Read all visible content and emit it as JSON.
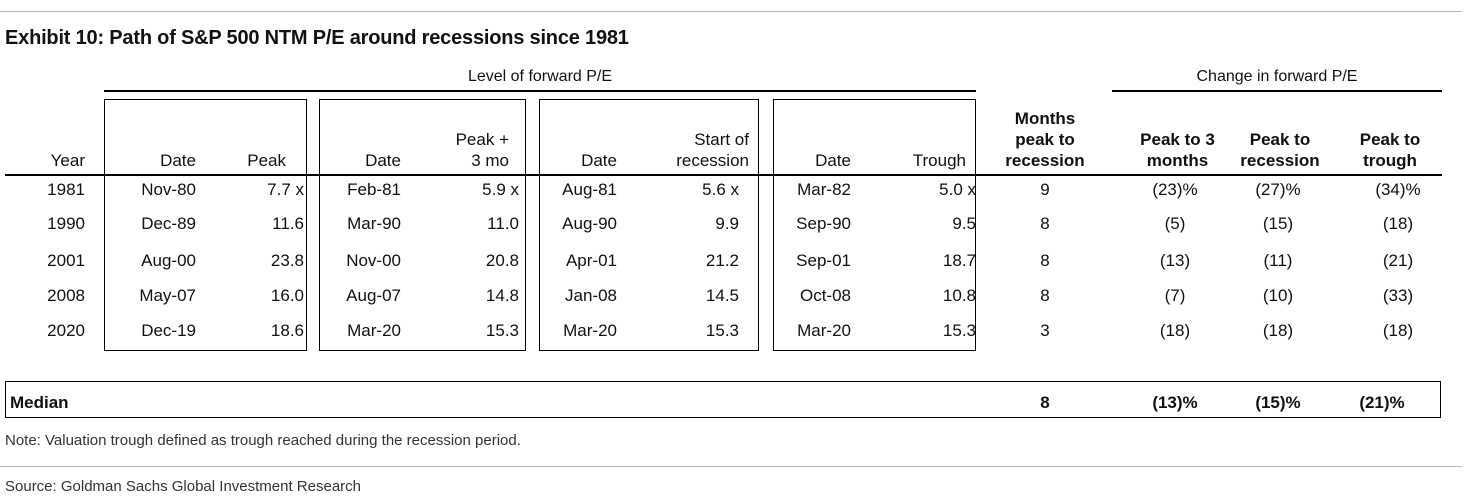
{
  "title": "Exhibit 10: Path of S&P 500 NTM P/E around recessions since 1981",
  "group_level": "Level of forward P/E",
  "group_change": "Change in forward P/E",
  "headers": {
    "year": "Year",
    "date": "Date",
    "peak": "Peak",
    "peak3_l1": "Peak +",
    "peak3_l2": "3 mo",
    "start_l1": "Start of",
    "start_l2": "recession",
    "trough": "Trough",
    "months_l1": "Months",
    "months_l2": "peak to",
    "months_l3": "recession",
    "chg3_l1": "Peak to 3",
    "chg3_l2": "months",
    "chgrec_l1": "Peak to",
    "chgrec_l2": "recession",
    "chgtr_l1": "Peak to",
    "chgtr_l2": "trough"
  },
  "rows": [
    {
      "year": "1981",
      "peak_date": "Nov-80",
      "peak": "7.7 x",
      "p3_date": "Feb-81",
      "p3": "5.9 x",
      "rec_date": "Aug-81",
      "rec": "5.6 x",
      "tr_date": "Mar-82",
      "tr": "5.0 x",
      "months": "9",
      "chg3": "(23)%",
      "chgrec": "(27)%",
      "chgtr": "(34)%"
    },
    {
      "year": "1990",
      "peak_date": "Dec-89",
      "peak": "11.6",
      "p3_date": "Mar-90",
      "p3": "11.0",
      "rec_date": "Aug-90",
      "rec": "9.9",
      "tr_date": "Sep-90",
      "tr": "9.5",
      "months": "8",
      "chg3": "(5)",
      "chgrec": "(15)",
      "chgtr": "(18)"
    },
    {
      "year": "2001",
      "peak_date": "Aug-00",
      "peak": "23.8",
      "p3_date": "Nov-00",
      "p3": "20.8",
      "rec_date": "Apr-01",
      "rec": "21.2",
      "tr_date": "Sep-01",
      "tr": "18.7",
      "months": "8",
      "chg3": "(13)",
      "chgrec": "(11)",
      "chgtr": "(21)"
    },
    {
      "year": "2008",
      "peak_date": "May-07",
      "peak": "16.0",
      "p3_date": "Aug-07",
      "p3": "14.8",
      "rec_date": "Jan-08",
      "rec": "14.5",
      "tr_date": "Oct-08",
      "tr": "10.8",
      "months": "8",
      "chg3": "(7)",
      "chgrec": "(10)",
      "chgtr": "(33)"
    },
    {
      "year": "2020",
      "peak_date": "Dec-19",
      "peak": "18.6",
      "p3_date": "Mar-20",
      "p3": "15.3",
      "rec_date": "Mar-20",
      "rec": "15.3",
      "tr_date": "Mar-20",
      "tr": "15.3",
      "months": "3",
      "chg3": "(18)",
      "chgrec": "(18)",
      "chgtr": "(18)"
    }
  ],
  "median": {
    "label": "Median",
    "months": "8",
    "chg3": "(13)%",
    "chgrec": "(15)%",
    "chgtr": "(21)%"
  },
  "note": "Note: Valuation trough defined as trough reached during the recession period.",
  "source": "Source: Goldman Sachs Global Investment Research"
}
